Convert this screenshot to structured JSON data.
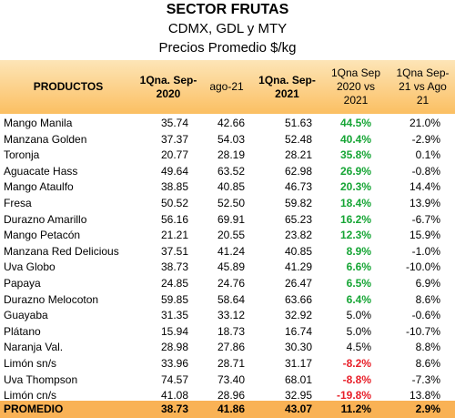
{
  "title": "SECTOR FRUTAS",
  "subtitle": "CDMX, GDL y MTY",
  "subtitle2": "Precios Promedio $/kg",
  "columns": {
    "product": "PRODUCTOS",
    "c1": "1Qna. Sep-\n2020",
    "c2": "ago-21",
    "c3": "1Qna. Sep-\n2021",
    "c4": "1Qna Sep\n2020 vs\n2021",
    "c5": "1Qna Sep-\n21 vs Ago\n21"
  },
  "positive_color": "#16a535",
  "negative_color": "#e8202a",
  "header_color": "#fbbf62",
  "rows": [
    {
      "product": "Mango Manila",
      "sep20": "35.74",
      "ago21": "42.66",
      "sep21": "51.63",
      "var_year": "44.5%",
      "var_year_style": "pos",
      "var_month": "21.0%"
    },
    {
      "product": "Manzana Golden",
      "sep20": "37.37",
      "ago21": "54.03",
      "sep21": "52.48",
      "var_year": "40.4%",
      "var_year_style": "pos",
      "var_month": "-2.9%"
    },
    {
      "product": "Toronja",
      "sep20": "20.77",
      "ago21": "28.19",
      "sep21": "28.21",
      "var_year": "35.8%",
      "var_year_style": "pos",
      "var_month": "0.1%"
    },
    {
      "product": "Aguacate Hass",
      "sep20": "49.64",
      "ago21": "63.52",
      "sep21": "62.98",
      "var_year": "26.9%",
      "var_year_style": "pos",
      "var_month": "-0.8%"
    },
    {
      "product": "Mango Ataulfo",
      "sep20": "38.85",
      "ago21": "40.85",
      "sep21": "46.73",
      "var_year": "20.3%",
      "var_year_style": "pos",
      "var_month": "14.4%"
    },
    {
      "product": "Fresa",
      "sep20": "50.52",
      "ago21": "52.50",
      "sep21": "59.82",
      "var_year": "18.4%",
      "var_year_style": "pos",
      "var_month": "13.9%"
    },
    {
      "product": "Durazno Amarillo",
      "sep20": "56.16",
      "ago21": "69.91",
      "sep21": "65.23",
      "var_year": "16.2%",
      "var_year_style": "pos",
      "var_month": "-6.7%"
    },
    {
      "product": "Mango Petacón",
      "sep20": "21.21",
      "ago21": "20.55",
      "sep21": "23.82",
      "var_year": "12.3%",
      "var_year_style": "pos",
      "var_month": "15.9%"
    },
    {
      "product": "Manzana Red Delicious",
      "sep20": "37.51",
      "ago21": "41.24",
      "sep21": "40.85",
      "var_year": "8.9%",
      "var_year_style": "pos",
      "var_month": "-1.0%"
    },
    {
      "product": "Uva Globo",
      "sep20": "38.73",
      "ago21": "45.89",
      "sep21": "41.29",
      "var_year": "6.6%",
      "var_year_style": "pos",
      "var_month": "-10.0%"
    },
    {
      "product": "Papaya",
      "sep20": "24.85",
      "ago21": "24.76",
      "sep21": "26.47",
      "var_year": "6.5%",
      "var_year_style": "pos",
      "var_month": "6.9%"
    },
    {
      "product": "Durazno Melocoton",
      "sep20": "59.85",
      "ago21": "58.64",
      "sep21": "63.66",
      "var_year": "6.4%",
      "var_year_style": "pos",
      "var_month": "8.6%"
    },
    {
      "product": "Guayaba",
      "sep20": "31.35",
      "ago21": "33.12",
      "sep21": "32.92",
      "var_year": "5.0%",
      "var_year_style": "",
      "var_month": "-0.6%"
    },
    {
      "product": "Plátano",
      "sep20": "15.94",
      "ago21": "18.73",
      "sep21": "16.74",
      "var_year": "5.0%",
      "var_year_style": "",
      "var_month": "-10.7%"
    },
    {
      "product": "Naranja Val.",
      "sep20": "28.98",
      "ago21": "27.86",
      "sep21": "30.30",
      "var_year": "4.5%",
      "var_year_style": "",
      "var_month": "8.8%"
    },
    {
      "product": "Limón sn/s",
      "sep20": "33.96",
      "ago21": "28.71",
      "sep21": "31.17",
      "var_year": "-8.2%",
      "var_year_style": "neg",
      "var_month": "8.6%"
    },
    {
      "product": "Uva Thompson",
      "sep20": "74.57",
      "ago21": "73.40",
      "sep21": "68.01",
      "var_year": "-8.8%",
      "var_year_style": "neg",
      "var_month": "-7.3%"
    },
    {
      "product": "Limón cn/s",
      "sep20": "41.08",
      "ago21": "28.96",
      "sep21": "32.95",
      "var_year": "-19.8%",
      "var_year_style": "neg",
      "var_month": "13.8%"
    }
  ],
  "footer": {
    "product": "PROMEDIO",
    "sep20": "38.73",
    "ago21": "41.86",
    "sep21": "43.07",
    "var_year": "11.2%",
    "var_month": "2.9%"
  }
}
